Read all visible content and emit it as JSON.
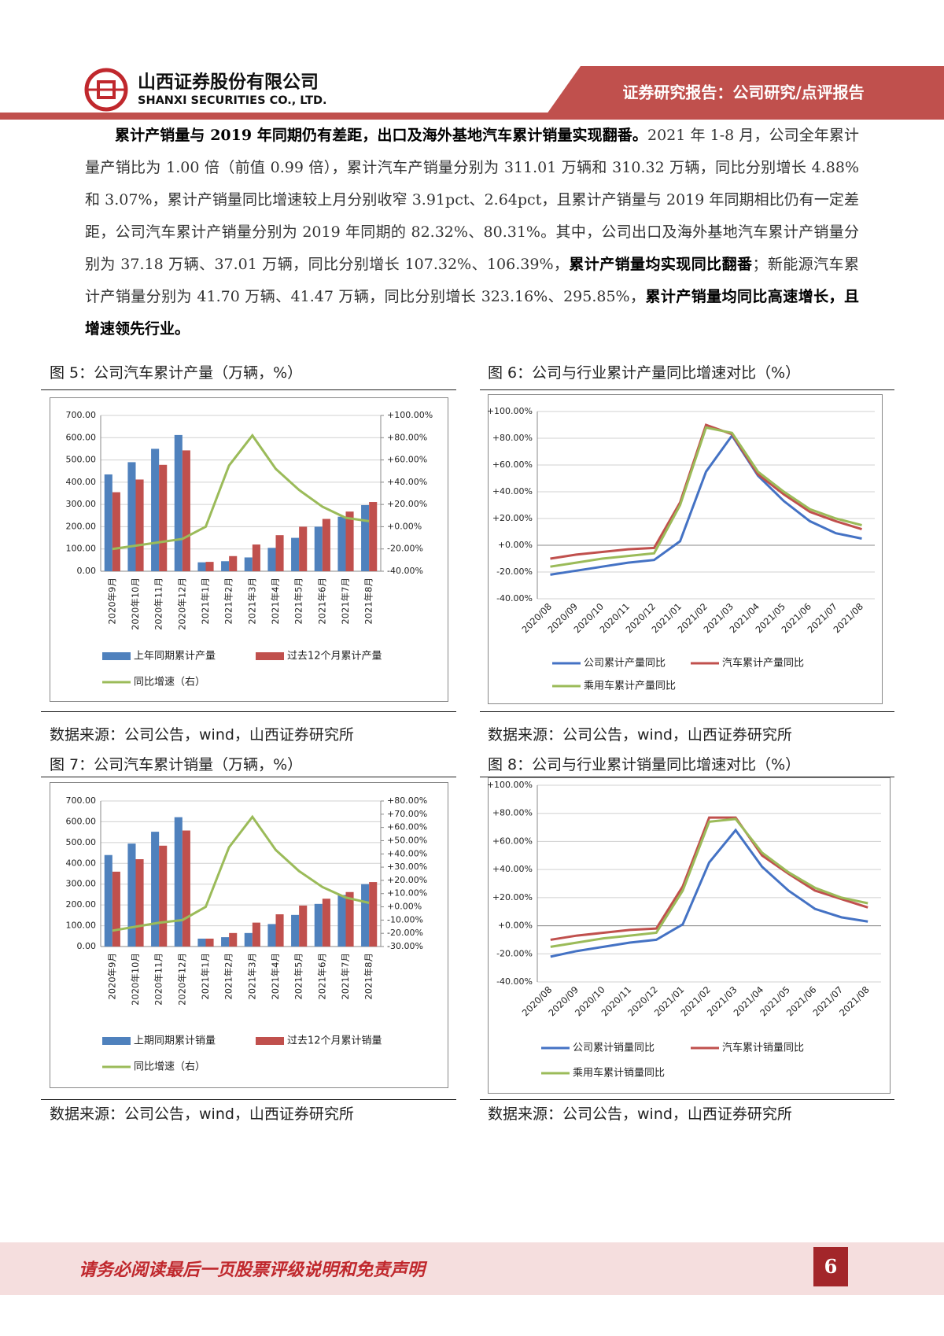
{
  "header": {
    "company": "山西证券股份有限公司",
    "company_en": "SHANXI SECURITIES CO., LTD.",
    "report_type": "证券研究报告：公司研究/点评报告"
  },
  "body": {
    "runs": [
      {
        "text": "累计产销量与 2019 年同期仍有差距，出口及海外基地汽车累计销量实现翻番。",
        "bold": true
      },
      {
        "text": "2021 年 1-8 月，公司全年累计量产销比为 1.00 倍（前值 0.99 倍），累计汽车产销量分别为 311.01 万辆和 310.32 万辆，同比分别增长 4.88%和 3.07%，累计产销量同比增速较上月分别收窄 3.91pct、2.64pct，且累计产销量与 2019 年同期相比仍有一定差距，公司汽车累计产销量分别为 2019 年同期的 82.32%、80.31%。其中，公司出口及海外基地汽车累计产销量分别为 37.18 万辆、37.01 万辆，同比分别增长 107.32%、106.39%，",
        "bold": false
      },
      {
        "text": "累计产销量均实现同比翻番",
        "bold": true
      },
      {
        "text": "；新能源汽车累计产销量分别为 41.70 万辆、41.47 万辆，同比分别增长 323.16%、295.85%，",
        "bold": false
      },
      {
        "text": "累计产销量均同比高速增长，且增速领先行业。",
        "bold": true
      }
    ]
  },
  "chart_data": [
    {
      "type": "bar_line",
      "title": "图 5：公司汽车累计产量（万辆，%）",
      "source": "数据来源：公司公告，wind，山西证券研究所",
      "categories": [
        "2020年9月",
        "2020年10月",
        "2020年11月",
        "2020年12月",
        "2021年1月",
        "2021年2月",
        "2021年3月",
        "2021年4月",
        "2021年5月",
        "2021年6月",
        "2021年7月",
        "2021年8月"
      ],
      "series": [
        {
          "name": "上年同期累计产量",
          "type": "bar",
          "color": "#4f81bd",
          "values": [
            435,
            490,
            550,
            612,
            40,
            45,
            62,
            105,
            150,
            200,
            245,
            297
          ]
        },
        {
          "name": "过去12个月累计产量",
          "type": "bar",
          "color": "#c0504d",
          "values": [
            355,
            412,
            478,
            543,
            42,
            68,
            120,
            162,
            200,
            235,
            268,
            311
          ]
        },
        {
          "name": "同比增速（右）",
          "type": "line",
          "axis": "y2",
          "color": "#9bbb59",
          "values": [
            -20,
            -17,
            -14,
            -11,
            0,
            55,
            82,
            52,
            33,
            18,
            8,
            5
          ]
        }
      ],
      "ylim": [
        0,
        700
      ],
      "yticks": [
        {
          "value": 0,
          "label": "0.00"
        },
        {
          "value": 100,
          "label": "100.00"
        },
        {
          "value": 200,
          "label": "200.00"
        },
        {
          "value": 300,
          "label": "300.00"
        },
        {
          "value": 400,
          "label": "400.00"
        },
        {
          "value": 500,
          "label": "500.00"
        },
        {
          "value": 600,
          "label": "600.00"
        },
        {
          "value": 700,
          "label": "700.00"
        }
      ],
      "y2lim": [
        -40,
        100
      ],
      "y2ticks": [
        {
          "value": -40,
          "label": "-40.00%"
        },
        {
          "value": -20,
          "label": "-20.00%"
        },
        {
          "value": 0,
          "label": "+0.00%"
        },
        {
          "value": 20,
          "label": "+20.00%"
        },
        {
          "value": 40,
          "label": "+40.00%"
        },
        {
          "value": 60,
          "label": "+60.00%"
        },
        {
          "value": 80,
          "label": "+80.00%"
        },
        {
          "value": 100,
          "label": "+100.00%"
        }
      ],
      "grid": true
    },
    {
      "type": "line",
      "title": "图 6：公司与行业累计产量同比增速对比（%）",
      "source": "数据来源：公司公告，wind，山西证券研究所",
      "categories": [
        "2020/08",
        "2020/09",
        "2020/10",
        "2020/11",
        "2020/12",
        "2021/01",
        "2021/02",
        "2021/03",
        "2021/04",
        "2021/05",
        "2021/06",
        "2021/07",
        "2021/08"
      ],
      "series": [
        {
          "name": "公司累计产量同比",
          "color": "#4472c4",
          "values": [
            -22,
            -19,
            -16,
            -13,
            -11,
            3,
            55,
            82,
            52,
            33,
            18,
            9,
            5
          ]
        },
        {
          "name": "汽车累计产量同比",
          "color": "#c0504d",
          "values": [
            -10,
            -7,
            -5,
            -3,
            -2,
            32,
            90,
            83,
            53,
            38,
            25,
            18,
            12
          ]
        },
        {
          "name": "乘用车累计产量同比",
          "color": "#9bbb59",
          "values": [
            -16,
            -13,
            -10,
            -8,
            -6,
            30,
            88,
            84,
            55,
            40,
            27,
            20,
            15
          ]
        }
      ],
      "ylim": [
        -40,
        100
      ],
      "yticks": [
        {
          "value": -40,
          "label": "-40.00%"
        },
        {
          "value": -20,
          "label": "-20.00%"
        },
        {
          "value": 0,
          "label": "+0.00%"
        },
        {
          "value": 20,
          "label": "+20.00%"
        },
        {
          "value": 40,
          "label": "+40.00%"
        },
        {
          "value": 60,
          "label": "+60.00%"
        },
        {
          "value": 80,
          "label": "+80.00%"
        },
        {
          "value": 100,
          "label": "+100.00%"
        }
      ],
      "grid": true
    },
    {
      "type": "bar_line",
      "title": "图 7：公司汽车累计销量（万辆，%）",
      "source": "数据来源：公司公告，wind，山西证券研究所",
      "categories": [
        "2020年9月",
        "2020年10月",
        "2020年11月",
        "2020年12月",
        "2021年1月",
        "2021年2月",
        "2021年3月",
        "2021年4月",
        "2021年5月",
        "2021年6月",
        "2021年7月",
        "2021年8月"
      ],
      "series": [
        {
          "name": "上期同期累计销量",
          "type": "bar",
          "color": "#4f81bd",
          "values": [
            440,
            495,
            552,
            622,
            38,
            45,
            65,
            108,
            152,
            205,
            248,
            300
          ]
        },
        {
          "name": "过去12个月累计销量",
          "type": "bar",
          "color": "#c0504d",
          "values": [
            360,
            420,
            485,
            558,
            38,
            65,
            115,
            155,
            197,
            230,
            262,
            310
          ]
        },
        {
          "name": "同比增速（右）",
          "type": "line",
          "axis": "y2",
          "color": "#9bbb59",
          "values": [
            -18,
            -15,
            -12,
            -10,
            0,
            45,
            68,
            43,
            27,
            15,
            7,
            3
          ]
        }
      ],
      "ylim": [
        0,
        700
      ],
      "yticks": [
        {
          "value": 0,
          "label": "0.00"
        },
        {
          "value": 100,
          "label": "100.00"
        },
        {
          "value": 200,
          "label": "200.00"
        },
        {
          "value": 300,
          "label": "300.00"
        },
        {
          "value": 400,
          "label": "400.00"
        },
        {
          "value": 500,
          "label": "500.00"
        },
        {
          "value": 600,
          "label": "600.00"
        },
        {
          "value": 700,
          "label": "700.00"
        }
      ],
      "y2lim": [
        -30,
        80
      ],
      "y2ticks": [
        {
          "value": -30,
          "label": "-30.00%"
        },
        {
          "value": -20,
          "label": "-20.00%"
        },
        {
          "value": -10,
          "label": "-10.00%"
        },
        {
          "value": 0,
          "label": "+0.00%"
        },
        {
          "value": 10,
          "label": "+10.00%"
        },
        {
          "value": 20,
          "label": "+20.00%"
        },
        {
          "value": 30,
          "label": "+30.00%"
        },
        {
          "value": 40,
          "label": "+40.00%"
        },
        {
          "value": 50,
          "label": "+50.00%"
        },
        {
          "value": 60,
          "label": "+60.00%"
        },
        {
          "value": 70,
          "label": "+70.00%"
        },
        {
          "value": 80,
          "label": "+80.00%"
        }
      ],
      "grid": true
    },
    {
      "type": "line",
      "title": "图 8：公司与行业累计销量同比增速对比（%）",
      "source": "数据来源：公司公告，wind，山西证券研究所",
      "categories": [
        "2020/08",
        "2020/09",
        "2020/10",
        "2020/11",
        "2020/12",
        "2021/01",
        "2021/02",
        "2021/03",
        "2021/04",
        "2021/05",
        "2021/06",
        "2021/07",
        "2021/08"
      ],
      "series": [
        {
          "name": "公司累计销量同比",
          "color": "#4472c4",
          "values": [
            -22,
            -18,
            -15,
            -12,
            -10,
            1,
            45,
            68,
            42,
            25,
            12,
            6,
            3
          ]
        },
        {
          "name": "汽车累计销量同比",
          "color": "#c0504d",
          "values": [
            -10,
            -7,
            -5,
            -3,
            -2,
            28,
            77,
            77,
            50,
            37,
            25,
            19,
            13
          ]
        },
        {
          "name": "乘用车累计销量同比",
          "color": "#9bbb59",
          "values": [
            -15,
            -12,
            -9,
            -7,
            -5,
            25,
            74,
            76,
            52,
            38,
            27,
            20,
            16
          ]
        }
      ],
      "ylim": [
        -40,
        100
      ],
      "yticks": [
        {
          "value": -40,
          "label": "-40.00%"
        },
        {
          "value": -20,
          "label": "-20.00%"
        },
        {
          "value": 0,
          "label": "+0.00%"
        },
        {
          "value": 20,
          "label": "+20.00%"
        },
        {
          "value": 40,
          "label": "+40.00%"
        },
        {
          "value": 60,
          "label": "+60.00%"
        },
        {
          "value": 80,
          "label": "+80.00%"
        },
        {
          "value": 100,
          "label": "+100.00%"
        }
      ],
      "grid": true
    }
  ],
  "footer": {
    "disclaimer": "请务必阅读最后一页股票评级说明和免责声明",
    "page_number": 6
  }
}
